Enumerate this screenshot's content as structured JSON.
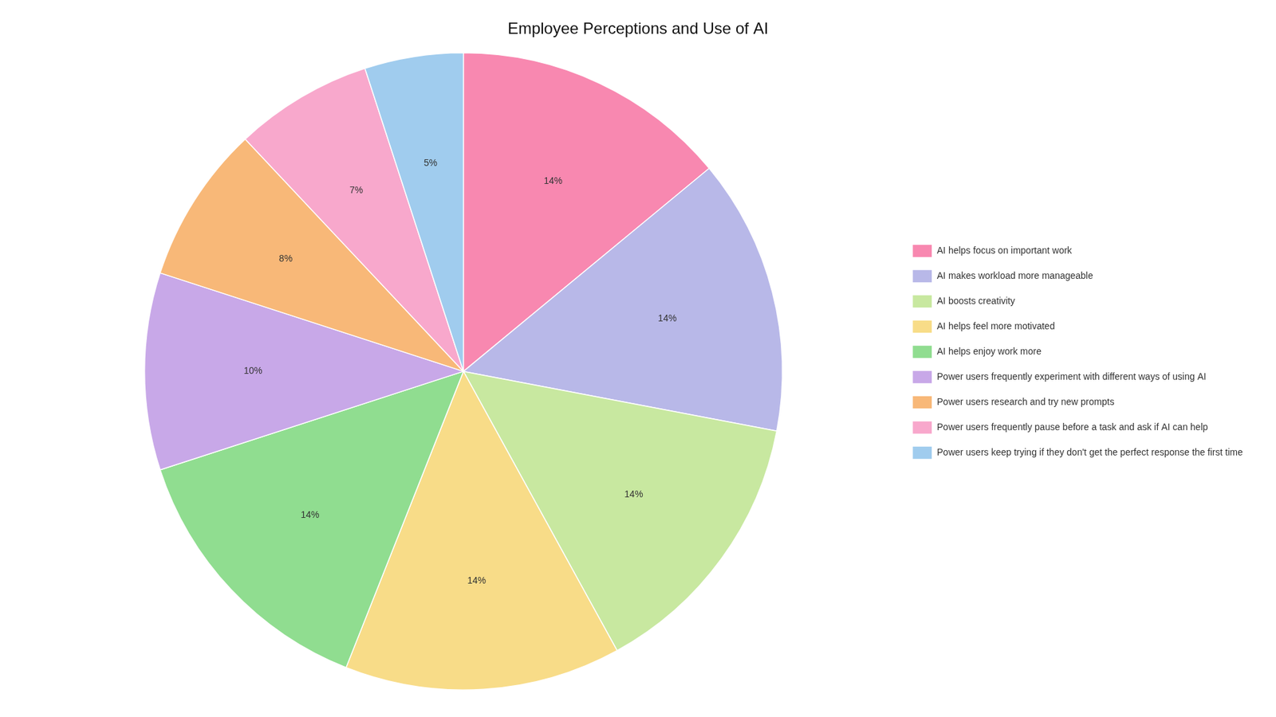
{
  "chart_data": {
    "type": "pie",
    "title": "Employee Perceptions and Use of AI",
    "categories": [
      "AI helps focus on important work",
      "AI makes workload more manageable",
      "AI boosts creativity",
      "AI helps feel more motivated",
      "AI helps enjoy work more",
      "Power users frequently experiment with different ways of using AI",
      "Power users research and try new prompts",
      "Power users frequently pause before a task and ask if AI can help",
      "Power users keep trying if they don't get the perfect response the first time"
    ],
    "values": [
      14,
      14,
      14,
      14,
      14,
      10,
      8,
      7,
      5
    ],
    "value_labels": [
      "14%",
      "14%",
      "14%",
      "14%",
      "14%",
      "10%",
      "8%",
      "7%",
      "5%"
    ],
    "colors": [
      "#F888B0",
      "#B8B8E8",
      "#C8E8A0",
      "#F8DC88",
      "#90DD90",
      "#C8A8E8",
      "#F8B878",
      "#F8A8CC",
      "#A0CCEE"
    ],
    "data_labels": true,
    "legend": "right"
  }
}
